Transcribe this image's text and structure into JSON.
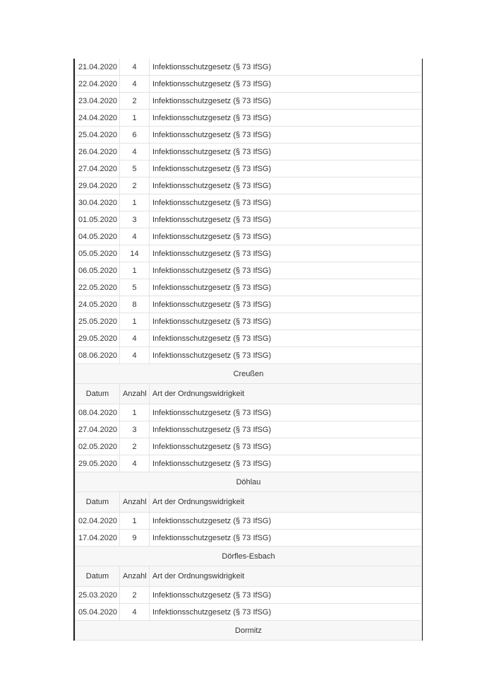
{
  "columns": {
    "date": "Datum",
    "count": "Anzahl",
    "type": "Art der Ordnungswidrigkeit"
  },
  "sections": [
    {
      "title": "",
      "show_header": false,
      "rows": [
        [
          "21.04.2020",
          "4",
          "Infektionsschutzgesetz (§ 73 IfSG)"
        ],
        [
          "22.04.2020",
          "4",
          "Infektionsschutzgesetz (§ 73 IfSG)"
        ],
        [
          "23.04.2020",
          "2",
          "Infektionsschutzgesetz (§ 73 IfSG)"
        ],
        [
          "24.04.2020",
          "1",
          "Infektionsschutzgesetz (§ 73 IfSG)"
        ],
        [
          "25.04.2020",
          "6",
          "Infektionsschutzgesetz (§ 73 IfSG)"
        ],
        [
          "26.04.2020",
          "4",
          "Infektionsschutzgesetz (§ 73 IfSG)"
        ],
        [
          "27.04.2020",
          "5",
          "Infektionsschutzgesetz (§ 73 IfSG)"
        ],
        [
          "29.04.2020",
          "2",
          "Infektionsschutzgesetz (§ 73 IfSG)"
        ],
        [
          "30.04.2020",
          "1",
          "Infektionsschutzgesetz (§ 73 IfSG)"
        ],
        [
          "01.05.2020",
          "3",
          "Infektionsschutzgesetz (§ 73 IfSG)"
        ],
        [
          "04.05.2020",
          "4",
          "Infektionsschutzgesetz (§ 73 IfSG)"
        ],
        [
          "05.05.2020",
          "14",
          "Infektionsschutzgesetz (§ 73 IfSG)"
        ],
        [
          "06.05.2020",
          "1",
          "Infektionsschutzgesetz (§ 73 IfSG)"
        ],
        [
          "22.05.2020",
          "5",
          "Infektionsschutzgesetz (§ 73 IfSG)"
        ],
        [
          "24.05.2020",
          "8",
          "Infektionsschutzgesetz (§ 73 IfSG)"
        ],
        [
          "25.05.2020",
          "1",
          "Infektionsschutzgesetz (§ 73 IfSG)"
        ],
        [
          "29.05.2020",
          "4",
          "Infektionsschutzgesetz (§ 73 IfSG)"
        ],
        [
          "08.06.2020",
          "4",
          "Infektionsschutzgesetz (§ 73 IfSG)"
        ]
      ]
    },
    {
      "title": "Creußen",
      "show_header": true,
      "rows": [
        [
          "08.04.2020",
          "1",
          "Infektionsschutzgesetz (§ 73 IfSG)"
        ],
        [
          "27.04.2020",
          "3",
          "Infektionsschutzgesetz (§ 73 IfSG)"
        ],
        [
          "02.05.2020",
          "2",
          "Infektionsschutzgesetz (§ 73 IfSG)"
        ],
        [
          "29.05.2020",
          "4",
          "Infektionsschutzgesetz (§ 73 IfSG)"
        ]
      ]
    },
    {
      "title": "Döhlau",
      "show_header": true,
      "rows": [
        [
          "02.04.2020",
          "1",
          "Infektionsschutzgesetz (§ 73 IfSG)"
        ],
        [
          "17.04.2020",
          "9",
          "Infektionsschutzgesetz (§ 73 IfSG)"
        ]
      ]
    },
    {
      "title": "Dörfles-Esbach",
      "show_header": true,
      "rows": [
        [
          "25.03.2020",
          "2",
          "Infektionsschutzgesetz (§ 73 IfSG)"
        ],
        [
          "05.04.2020",
          "4",
          "Infektionsschutzgesetz (§ 73 IfSG)"
        ]
      ]
    },
    {
      "title": "Dormitz",
      "show_header": false,
      "rows": []
    }
  ]
}
